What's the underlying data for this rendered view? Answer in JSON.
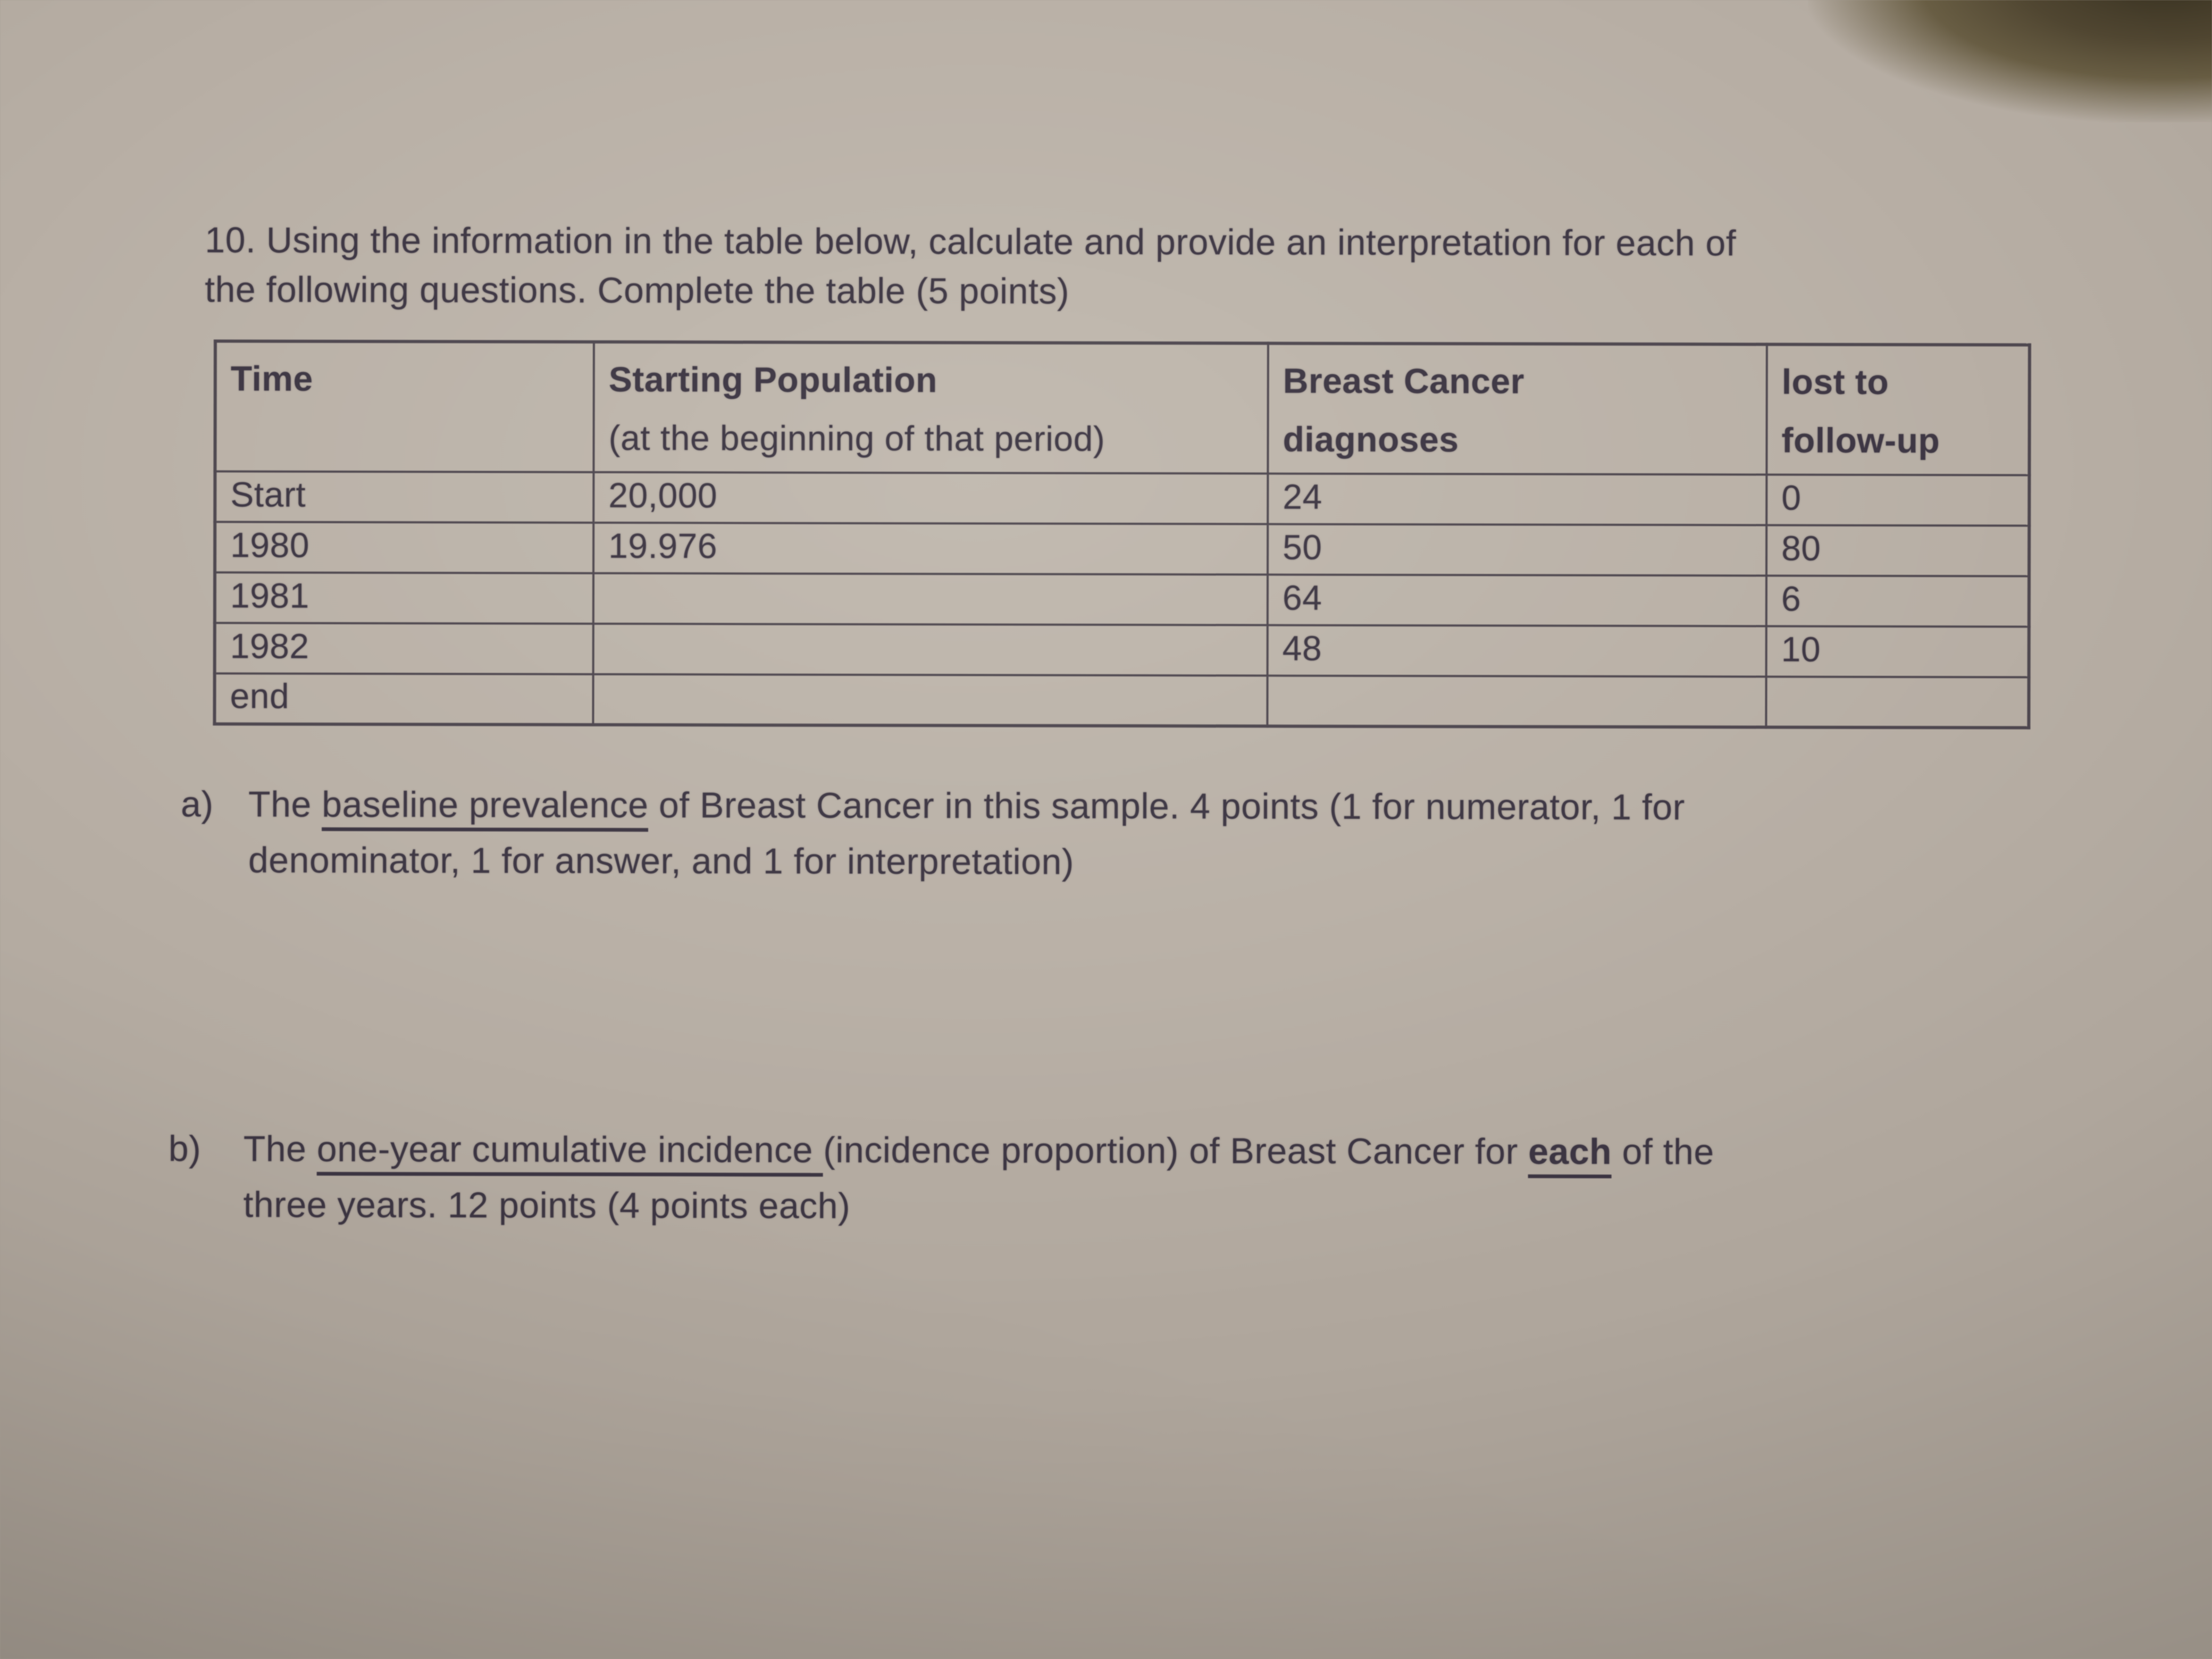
{
  "colors": {
    "paper": "#b5aca2",
    "ink": "#3a3340",
    "table_border": "#4b444c"
  },
  "intro": {
    "lines": [
      "10. Using the information in the table below, calculate and provide an interpretation for each of",
      "the following questions. Complete the table (5 points)"
    ]
  },
  "table": {
    "headers": [
      {
        "line1": "Time",
        "line2": ""
      },
      {
        "line1": "Starting Population",
        "line2": "(at the beginning of that period)"
      },
      {
        "line1": "Breast Cancer",
        "line2": "diagnoses"
      },
      {
        "line1": "lost to",
        "line2": "follow-up"
      }
    ],
    "rows": [
      {
        "cells": [
          "Start",
          "20,000",
          "24",
          "0"
        ]
      },
      {
        "cells": [
          "1980",
          "19.976",
          "50",
          "80"
        ]
      },
      {
        "cells": [
          "1981",
          "",
          "64",
          "6"
        ]
      },
      {
        "cells": [
          "1982",
          "",
          "48",
          "10"
        ]
      },
      {
        "cells": [
          "end",
          "",
          "",
          ""
        ]
      }
    ]
  },
  "items": [
    {
      "label": "a)",
      "lines": [
        [
          {
            "t": "The "
          },
          {
            "t": "baseline prevalence",
            "u": true
          },
          {
            "t": " of Breast Cancer in this sample. 4 points (1 for numerator, 1 for"
          }
        ],
        [
          {
            "t": "denominator, 1 for answer, and 1 for interpretation)"
          }
        ]
      ]
    },
    {
      "label": "b)",
      "lines": [
        [
          {
            "t": "The "
          },
          {
            "t": "one-year cumulative incidence ",
            "u": true
          },
          {
            "t": "(incidence proportion) of Breast Cancer for "
          },
          {
            "t": "each",
            "u": true,
            "b": true
          },
          {
            "t": " of the"
          }
        ],
        [
          {
            "t": "three years. 12 points (4 points each)"
          }
        ]
      ]
    }
  ]
}
